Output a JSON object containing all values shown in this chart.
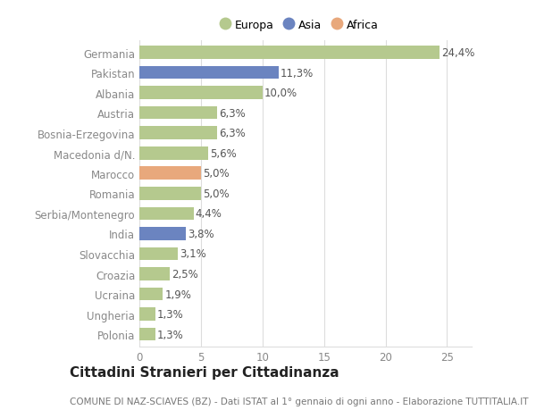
{
  "categories": [
    "Polonia",
    "Ungheria",
    "Ucraina",
    "Croazia",
    "Slovacchia",
    "India",
    "Serbia/Montenegro",
    "Romania",
    "Marocco",
    "Macedonia d/N.",
    "Bosnia-Erzegovina",
    "Austria",
    "Albania",
    "Pakistan",
    "Germania"
  ],
  "values": [
    1.3,
    1.3,
    1.9,
    2.5,
    3.1,
    3.8,
    4.4,
    5.0,
    5.0,
    5.6,
    6.3,
    6.3,
    10.0,
    11.3,
    24.4
  ],
  "labels": [
    "1,3%",
    "1,3%",
    "1,9%",
    "2,5%",
    "3,1%",
    "3,8%",
    "4,4%",
    "5,0%",
    "5,0%",
    "5,6%",
    "6,3%",
    "6,3%",
    "10,0%",
    "11,3%",
    "24,4%"
  ],
  "colors": [
    "#b5c98e",
    "#b5c98e",
    "#b5c98e",
    "#b5c98e",
    "#b5c98e",
    "#6b84c0",
    "#b5c98e",
    "#b5c98e",
    "#e8a87c",
    "#b5c98e",
    "#b5c98e",
    "#b5c98e",
    "#b5c98e",
    "#6b84c0",
    "#b5c98e"
  ],
  "legend_labels": [
    "Europa",
    "Asia",
    "Africa"
  ],
  "legend_colors": [
    "#b5c98e",
    "#6b84c0",
    "#e8a87c"
  ],
  "title": "Cittadini Stranieri per Cittadinanza",
  "subtitle": "COMUNE DI NAZ-SCIAVES (BZ) - Dati ISTAT al 1° gennaio di ogni anno - Elaborazione TUTTITALIA.IT",
  "xlim": [
    0,
    27
  ],
  "xticks": [
    0,
    5,
    10,
    15,
    20,
    25
  ],
  "bg_color": "#ffffff",
  "grid_color": "#dddddd",
  "bar_height": 0.65,
  "label_fontsize": 8.5,
  "tick_fontsize": 8.5,
  "title_fontsize": 11,
  "subtitle_fontsize": 7.5
}
